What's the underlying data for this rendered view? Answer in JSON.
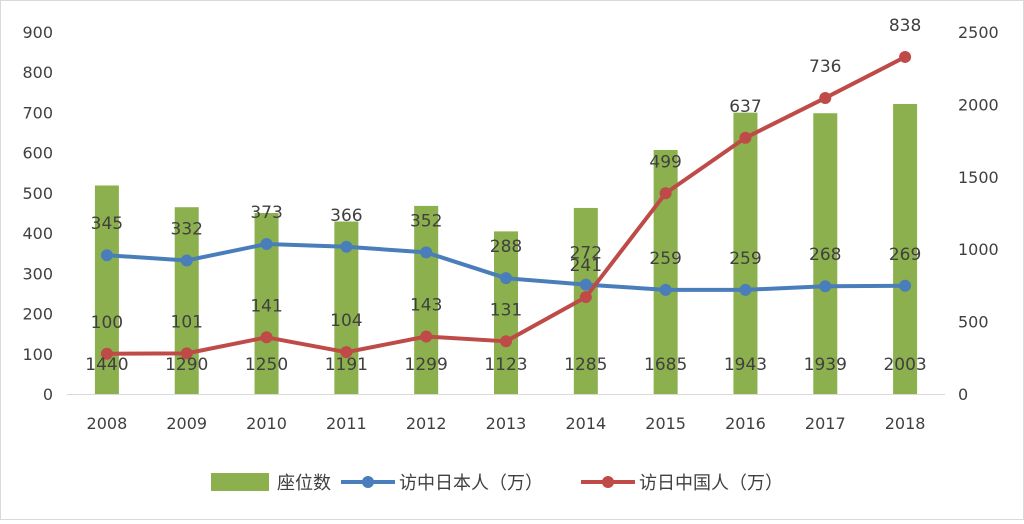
{
  "chart_data": {
    "type": "bar+line",
    "categories": [
      "2008",
      "2009",
      "2010",
      "2011",
      "2012",
      "2013",
      "2014",
      "2015",
      "2016",
      "2017",
      "2018"
    ],
    "left_axis": {
      "ylim": [
        0,
        900
      ],
      "ticks": [
        "0",
        "100",
        "200",
        "300",
        "400",
        "500",
        "600",
        "700",
        "800",
        "900"
      ]
    },
    "right_axis": {
      "ylim": [
        0,
        2500
      ],
      "ticks": [
        "0",
        "500",
        "1000",
        "1500",
        "2000",
        "2500"
      ]
    },
    "legend": {
      "position": "bottom"
    },
    "grid": false,
    "series": [
      {
        "name": "座位数",
        "type": "bar",
        "axis": "right",
        "color": "#8CB04E",
        "values": [
          1440,
          1290,
          1250,
          1191,
          1299,
          1123,
          1285,
          1685,
          1943,
          1939,
          2003
        ],
        "labels": [
          "1440",
          "1290",
          "1250",
          "1191",
          "1299",
          "1123",
          "1285",
          "1685",
          "1943",
          "1939",
          "2003"
        ]
      },
      {
        "name": "访中日本人（万）",
        "type": "line",
        "axis": "left",
        "color": "#4A7EBB",
        "values": [
          345,
          332,
          373,
          366,
          352,
          288,
          272,
          259,
          259,
          268,
          269
        ],
        "labels": [
          "345",
          "332",
          "373",
          "366",
          "352",
          "288",
          "272",
          "259",
          "259",
          "268",
          "269"
        ]
      },
      {
        "name": "访日中国人（万）",
        "type": "line",
        "axis": "left",
        "color": "#BE4B48",
        "values": [
          100,
          101,
          141,
          104,
          143,
          131,
          241,
          499,
          637,
          736,
          838
        ],
        "labels": [
          "100",
          "101",
          "141",
          "104",
          "143",
          "131",
          "241",
          "499",
          "637",
          "736",
          "838"
        ]
      }
    ]
  }
}
